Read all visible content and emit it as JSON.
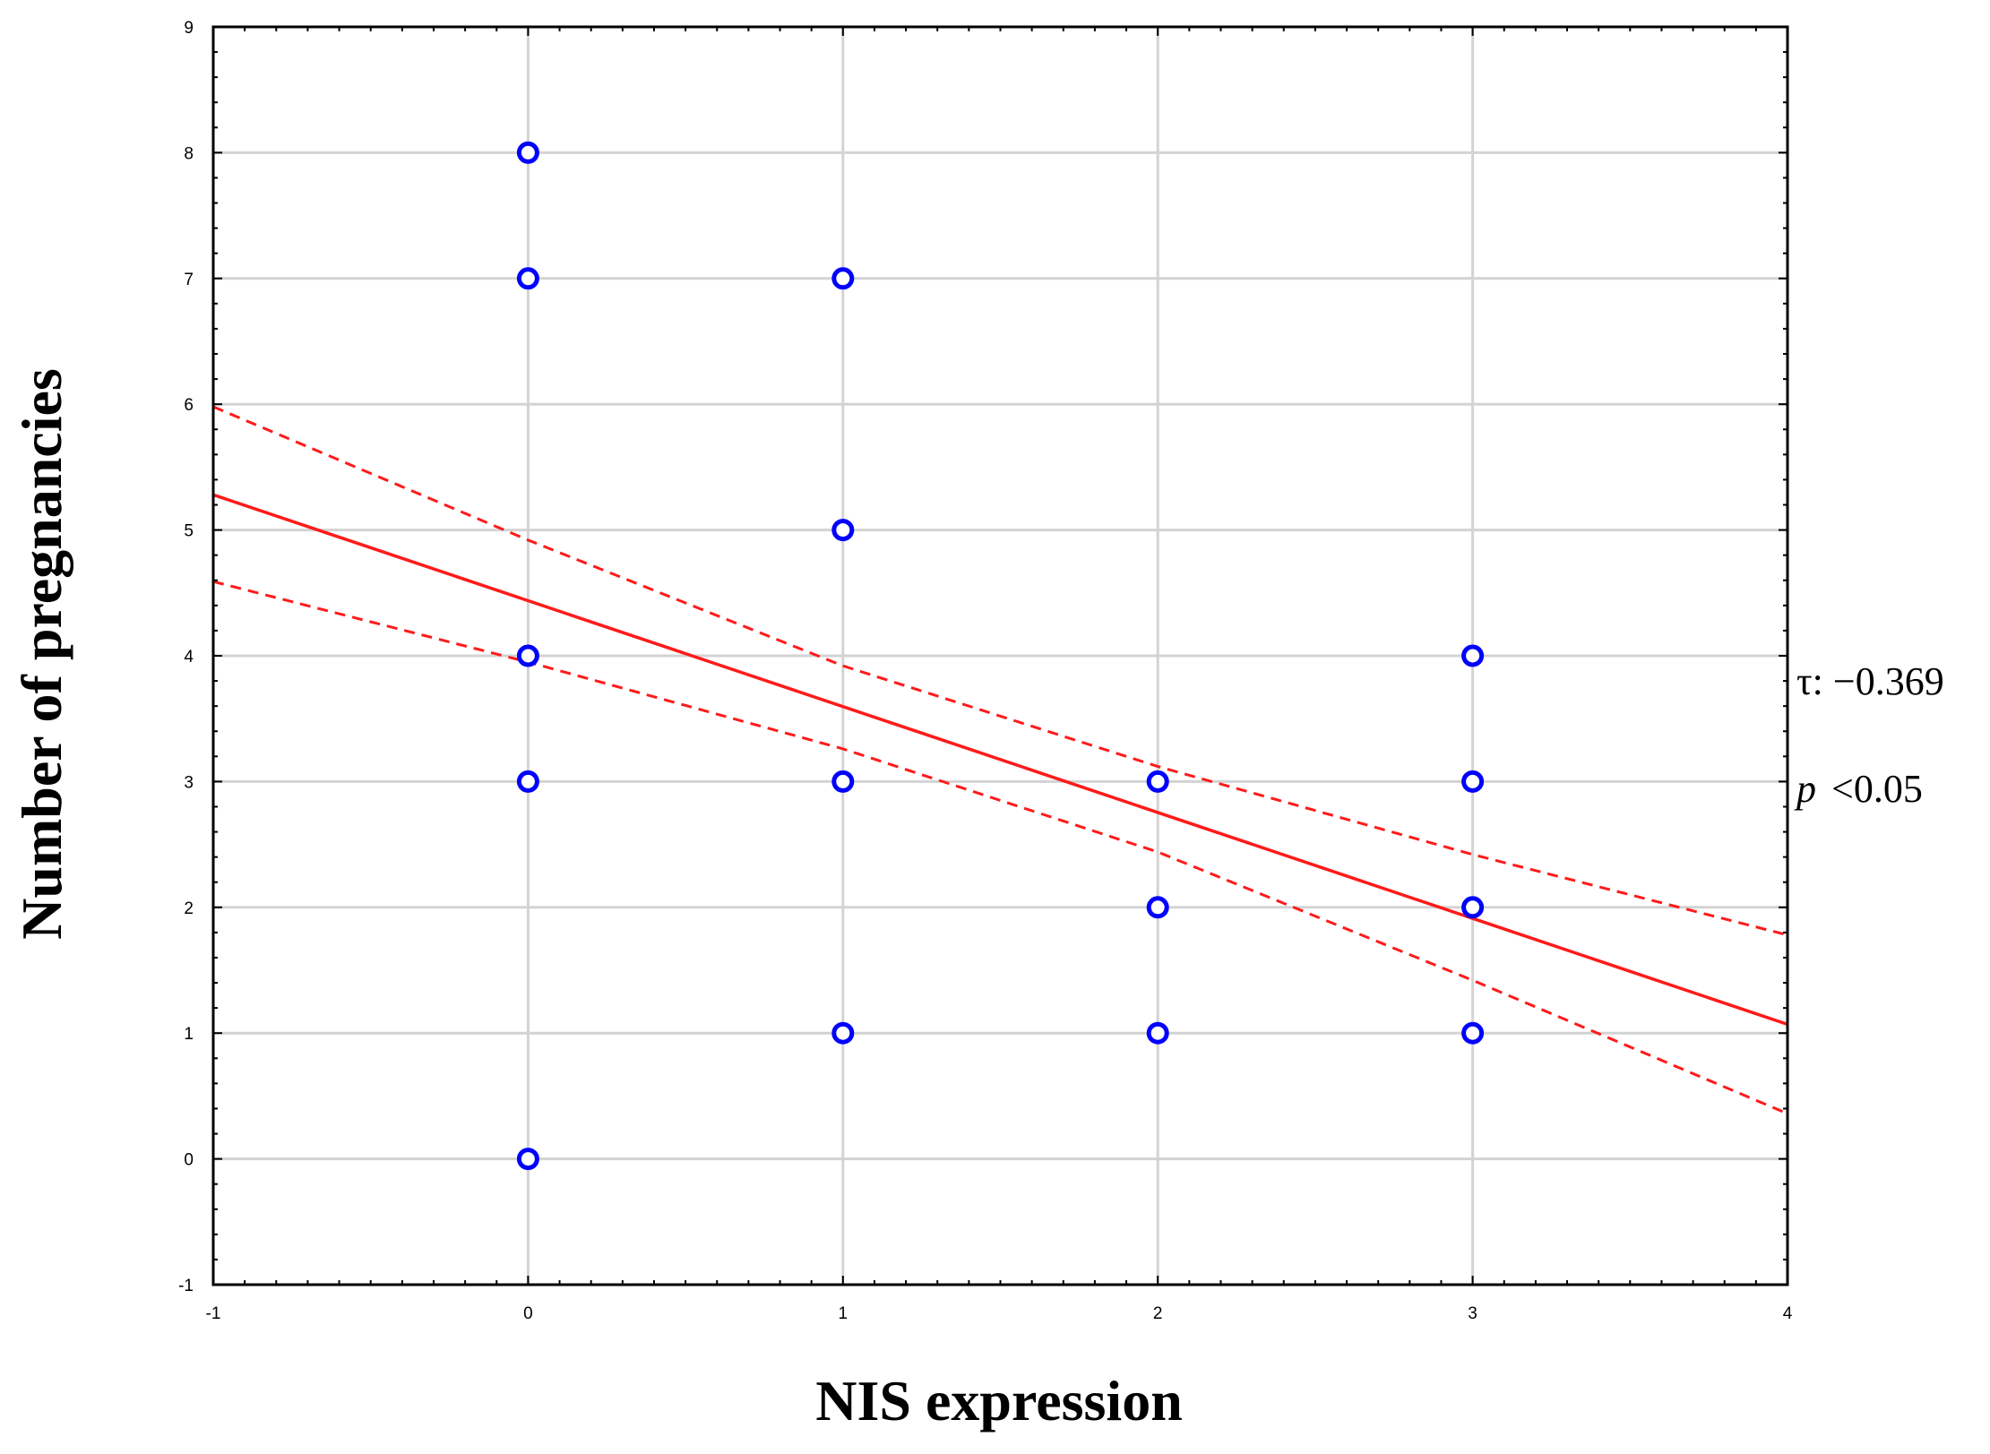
{
  "chart_data": {
    "type": "scatter",
    "title": "",
    "xlabel": "NIS expression",
    "ylabel": "Number of pregnancies",
    "xlim": [
      -1,
      4
    ],
    "ylim": [
      -1,
      9
    ],
    "xticks": [
      -1,
      0,
      1,
      2,
      3,
      4
    ],
    "yticks": [
      -1,
      0,
      1,
      2,
      3,
      4,
      5,
      6,
      7,
      8,
      9
    ],
    "grid": true,
    "points": [
      {
        "x": 0,
        "y": 8
      },
      {
        "x": 0,
        "y": 7
      },
      {
        "x": 0,
        "y": 4
      },
      {
        "x": 0,
        "y": 3
      },
      {
        "x": 0,
        "y": 0
      },
      {
        "x": 1,
        "y": 7
      },
      {
        "x": 1,
        "y": 5
      },
      {
        "x": 1,
        "y": 3
      },
      {
        "x": 1,
        "y": 1
      },
      {
        "x": 2,
        "y": 3
      },
      {
        "x": 2,
        "y": 2
      },
      {
        "x": 2,
        "y": 1
      },
      {
        "x": 3,
        "y": 4
      },
      {
        "x": 3,
        "y": 3
      },
      {
        "x": 3,
        "y": 2
      },
      {
        "x": 3,
        "y": 1
      }
    ],
    "fit_line": {
      "x": [
        -1,
        4
      ],
      "y": [
        5.28,
        1.07
      ]
    },
    "confidence_upper": {
      "x": [
        -1,
        0,
        1,
        2,
        3,
        4
      ],
      "y": [
        5.98,
        4.92,
        3.92,
        3.12,
        2.42,
        1.78
      ]
    },
    "confidence_lower": {
      "x": [
        -1,
        0,
        1,
        2,
        3,
        4
      ],
      "y": [
        4.59,
        3.95,
        3.26,
        2.44,
        1.42,
        0.36
      ]
    },
    "annotations": {
      "tau_label": "τ: −0.369",
      "p_symbol": "p",
      "p_value": "<0.05"
    },
    "colors": {
      "points": "#0000ff",
      "fit": "#ff1a1a",
      "grid": "#d3d3d3",
      "axis": "#000000"
    }
  }
}
